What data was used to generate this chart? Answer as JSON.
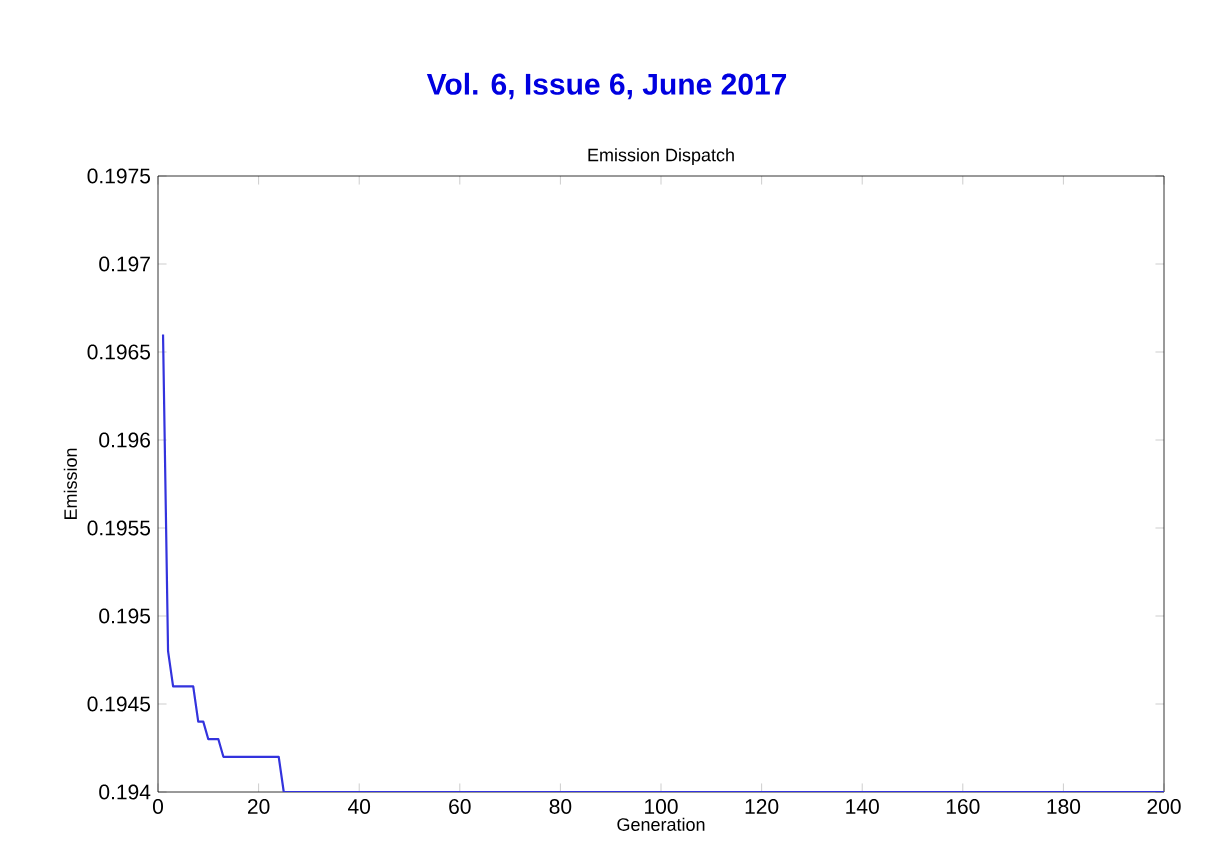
{
  "chart_data": {
    "type": "line",
    "title": "Emission Dispatch",
    "xlabel": "Generation",
    "ylabel": "Emission",
    "annotations": [
      "Vol. 6, Issue 6, June 2017"
    ],
    "x": [
      1,
      2,
      3,
      7,
      8,
      9,
      10,
      12,
      13,
      24,
      25,
      200
    ],
    "series": [
      {
        "color": "#3333dd",
        "values": [
          0.1966,
          0.1948,
          0.1946,
          0.1946,
          0.1944,
          0.1944,
          0.1943,
          0.1943,
          0.1942,
          0.1942,
          0.194,
          0.194
        ]
      }
    ],
    "xlim": [
      0,
      200
    ],
    "xticks": [
      0,
      20,
      40,
      60,
      80,
      100,
      120,
      140,
      160,
      180,
      200
    ],
    "ylim": [
      0.194,
      0.1975
    ],
    "yticks": [
      0.194,
      0.1945,
      0.195,
      0.1955,
      0.196,
      0.1965,
      0.197,
      0.1975
    ],
    "grid": false,
    "marker": "none",
    "line_style": "solid"
  }
}
